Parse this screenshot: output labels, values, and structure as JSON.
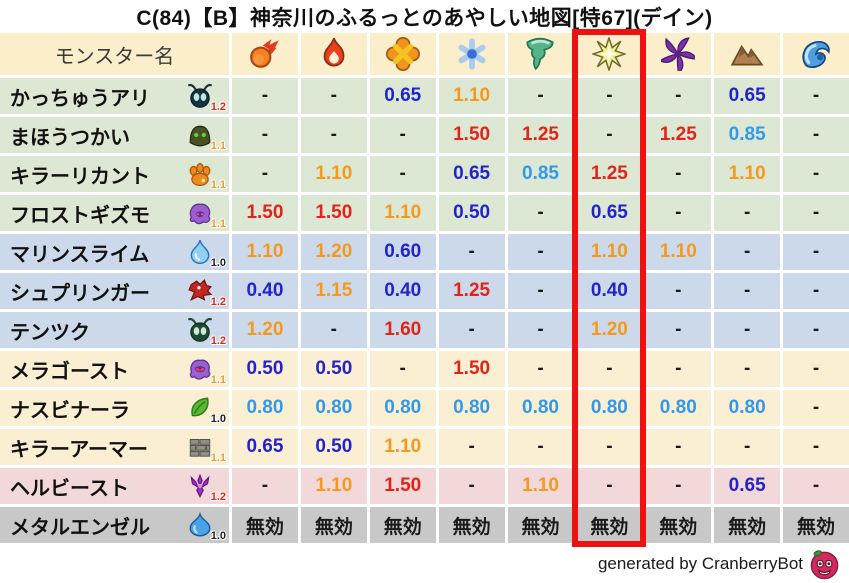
{
  "palette": {
    "val_red": "#e2231a",
    "val_orange": "#f5991d",
    "val_blue_dark": "#2323cc",
    "val_blue_light": "#3498e8",
    "text_black": "#1a1a1a",
    "band_green": "#dde8d4",
    "band_blue": "#ccd9ea",
    "band_cream": "#faeed3",
    "band_pink": "#f2d8d8",
    "band_gray": "#c8c8c8",
    "header_bg": "#faeecb",
    "highlight_red": "#ed1111"
  },
  "chart_data": {
    "type": "table",
    "title": "C(84)【B】神奈川のふるっとのあやしい地図[特67](デイン)",
    "name_header": "モンスター名",
    "no_effect_label": "無効",
    "columns": [
      {
        "icon": "fireball-icon"
      },
      {
        "icon": "flame-icon"
      },
      {
        "icon": "explosion-icon"
      },
      {
        "icon": "snowflake-icon"
      },
      {
        "icon": "tornado-icon",
        "note": ""
      },
      {
        "icon": "starburst-icon",
        "highlighted": true
      },
      {
        "icon": "pinwheel-icon"
      },
      {
        "icon": "mountain-icon"
      },
      {
        "icon": "wave-icon"
      }
    ],
    "highlighted_column_index": 5,
    "rows": [
      {
        "name": "かっちゅうアリ",
        "icon": "armor-ant-icon",
        "multiplier": "1.2",
        "band": "green",
        "values": [
          "-",
          "-",
          "0.65",
          "1.10",
          "-",
          "-",
          "-",
          "0.65",
          "-"
        ]
      },
      {
        "name": "まほうつかい",
        "icon": "mage-icon",
        "multiplier": "1.1",
        "band": "green",
        "values": [
          "-",
          "-",
          "-",
          "1.50",
          "1.25",
          "-",
          "1.25",
          "0.85",
          "-"
        ]
      },
      {
        "name": "キラーリカント",
        "icon": "paw-icon",
        "multiplier": "1.1",
        "band": "green",
        "values": [
          "-",
          "1.10",
          "-",
          "0.65",
          "0.85",
          "1.25",
          "-",
          "1.10",
          "-"
        ]
      },
      {
        "name": "フロストギズモ",
        "icon": "frost-gizmo-icon",
        "multiplier": "1.1",
        "band": "green",
        "values": [
          "1.50",
          "1.50",
          "1.10",
          "0.50",
          "-",
          "0.65",
          "-",
          "-",
          "-"
        ]
      },
      {
        "name": "マリンスライム",
        "icon": "droplet-icon",
        "multiplier": "1.0",
        "band": "blue",
        "values": [
          "1.10",
          "1.20",
          "0.60",
          "-",
          "-",
          "1.10",
          "1.10",
          "-",
          "-"
        ]
      },
      {
        "name": "シュプリンガー",
        "icon": "dragon-icon",
        "multiplier": "1.2",
        "band": "blue",
        "values": [
          "0.40",
          "1.15",
          "0.40",
          "1.25",
          "-",
          "0.40",
          "-",
          "-",
          "-"
        ]
      },
      {
        "name": "テンツク",
        "icon": "bug-icon",
        "multiplier": "1.2",
        "band": "blue",
        "values": [
          "1.20",
          "-",
          "1.60",
          "-",
          "-",
          "1.20",
          "-",
          "-",
          "-"
        ]
      },
      {
        "name": "メラゴースト",
        "icon": "ghost-icon",
        "multiplier": "1.1",
        "band": "cream",
        "values": [
          "0.50",
          "0.50",
          "-",
          "1.50",
          "-",
          "-",
          "-",
          "-",
          "-"
        ]
      },
      {
        "name": "ナスビナーラ",
        "icon": "leaf-icon",
        "multiplier": "1.0",
        "band": "cream",
        "values": [
          "0.80",
          "0.80",
          "0.80",
          "0.80",
          "0.80",
          "0.80",
          "0.80",
          "0.80",
          "-"
        ]
      },
      {
        "name": "キラーアーマー",
        "icon": "bricks-icon",
        "multiplier": "1.1",
        "band": "cream",
        "values": [
          "0.65",
          "0.50",
          "1.10",
          "-",
          "-",
          "-",
          "-",
          "-",
          "-"
        ]
      },
      {
        "name": "ヘルビースト",
        "icon": "trident-icon",
        "multiplier": "1.2",
        "band": "pink",
        "values": [
          "-",
          "1.10",
          "1.50",
          "-",
          "1.10",
          "-",
          "-",
          "0.65",
          "-"
        ]
      },
      {
        "name": "メタルエンゼル",
        "icon": "slime-icon",
        "multiplier": "1.0",
        "band": "gray",
        "values": [
          "無効",
          "無効",
          "無効",
          "無効",
          "無効",
          "無効",
          "無効",
          "無効",
          "無効"
        ]
      }
    ]
  },
  "footer": {
    "credit": "generated by CranberryBot",
    "icon": "cranberry-bot-icon"
  }
}
